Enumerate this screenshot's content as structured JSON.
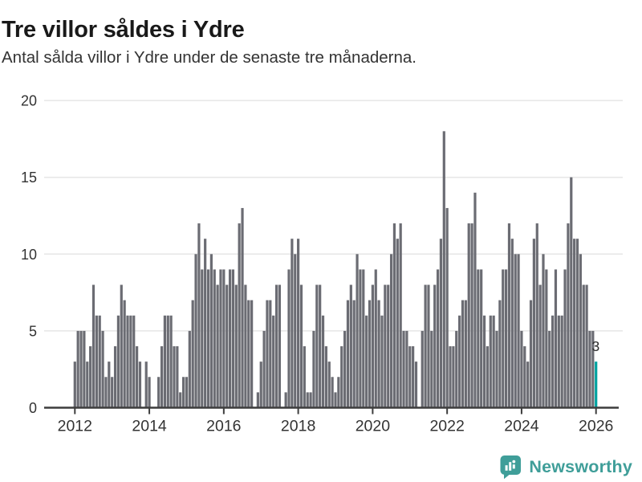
{
  "header": {
    "title": "Tre villor såldes i Ydre",
    "subtitle": "Antal sålda villor i Ydre under de senaste tre månaderna."
  },
  "chart_data": {
    "type": "bar",
    "title": "Tre villor såldes i Ydre",
    "subtitle": "Antal sålda villor i Ydre under de senaste tre månaderna.",
    "x_start": "2012-01",
    "x_end": "2026-01",
    "frequency": "monthly",
    "ylim": [
      0,
      20
    ],
    "grid": true,
    "y_axis": {
      "ticks": [
        0,
        5,
        10,
        15,
        20
      ]
    },
    "x_axis": {
      "tick_years": [
        2012,
        2014,
        2016,
        2018,
        2020,
        2022,
        2024,
        2026
      ],
      "tick_labels": [
        "2012",
        "2014",
        "2016",
        "2018",
        "2020",
        "2022",
        "2024",
        "2026"
      ]
    },
    "values": [
      3,
      5,
      5,
      5,
      3,
      4,
      8,
      6,
      6,
      5,
      2,
      3,
      2,
      4,
      6,
      8,
      7,
      6,
      6,
      6,
      4,
      3,
      0,
      3,
      2,
      0,
      0,
      2,
      4,
      6,
      6,
      6,
      4,
      4,
      1,
      2,
      2,
      5,
      7,
      10,
      12,
      9,
      11,
      9,
      10,
      9,
      8,
      9,
      9,
      8,
      9,
      9,
      8,
      12,
      13,
      8,
      7,
      7,
      0,
      1,
      3,
      5,
      7,
      7,
      6,
      8,
      8,
      0,
      1,
      9,
      11,
      10,
      11,
      8,
      4,
      1,
      1,
      5,
      8,
      8,
      6,
      4,
      3,
      2,
      1,
      2,
      4,
      5,
      7,
      8,
      7,
      10,
      9,
      9,
      6,
      7,
      8,
      9,
      7,
      6,
      8,
      8,
      10,
      12,
      11,
      12,
      5,
      5,
      4,
      4,
      3,
      0,
      5,
      8,
      8,
      5,
      8,
      9,
      11,
      18,
      13,
      4,
      4,
      5,
      6,
      7,
      7,
      12,
      12,
      14,
      9,
      9,
      6,
      4,
      6,
      6,
      5,
      7,
      9,
      9,
      12,
      11,
      10,
      10,
      5,
      4,
      3,
      7,
      11,
      12,
      8,
      10,
      9,
      5,
      6,
      9,
      6,
      6,
      9,
      12,
      15,
      11,
      11,
      10,
      8,
      8,
      5,
      5,
      3
    ],
    "highlight_last": true,
    "last_value_label": "3",
    "colors": {
      "bar": "#6b6c73",
      "highlight": "#00a2a0",
      "gridline": "#e6e6e6",
      "axis": "#3d3d3d",
      "tick_text": "#333333"
    }
  },
  "branding": {
    "text": "Newsworthy",
    "color": "#3f9e99",
    "icon": "bar-chart-speech-bubble"
  }
}
